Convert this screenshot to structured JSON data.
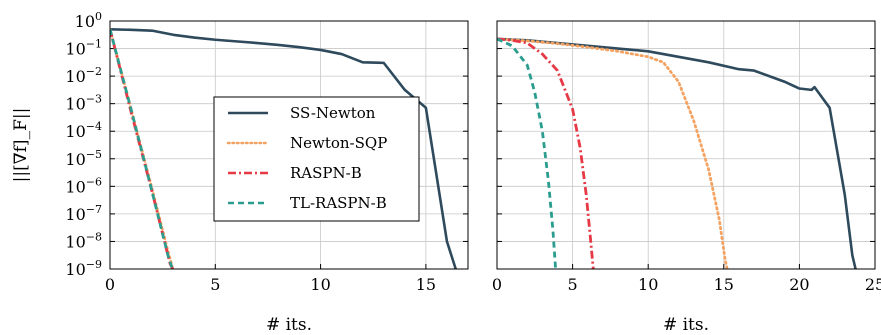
{
  "chart_data": [
    {
      "type": "line",
      "xlabel": "# its.",
      "ylabel": "||[∇f]_F||",
      "xlim": [
        0,
        17
      ],
      "ylim_log10": [
        -9,
        0
      ],
      "yscale": "log",
      "grid": true,
      "x_ticks": [
        "0",
        "5",
        "10",
        "15"
      ],
      "y_ticks": [
        "10^0",
        "10^-1",
        "10^-2",
        "10^-3",
        "10^-4",
        "10^-5",
        "10^-6",
        "10^-7",
        "10^-8",
        "10^-9"
      ],
      "legend": {
        "placement": "center-left",
        "entries": [
          "SS-Newton",
          "Newton-SQP",
          "RASPN-B",
          "TL-RASPN-B"
        ]
      },
      "series": [
        {
          "name": "SS-Newton",
          "color": "#2e4a5c",
          "style": "solid",
          "x": [
            0,
            1,
            2,
            3,
            4,
            5,
            6,
            7,
            8,
            9,
            10,
            11,
            12,
            13,
            14,
            15,
            16,
            16.5
          ],
          "log10_y": [
            -0.3,
            -0.32,
            -0.35,
            -0.5,
            -0.6,
            -0.68,
            -0.74,
            -0.8,
            -0.87,
            -0.95,
            -1.05,
            -1.2,
            -1.5,
            -1.52,
            -2.5,
            -3.15,
            -8.0,
            -9.2
          ]
        },
        {
          "name": "Newton-SQP",
          "color": "#f4a261",
          "style": "dotted",
          "x": [
            0,
            1,
            2,
            2.7,
            3.05
          ],
          "log10_y": [
            -0.3,
            -3.2,
            -6.1,
            -8.2,
            -9.2
          ]
        },
        {
          "name": "RASPN-B",
          "color": "#e63946",
          "style": "dashdot",
          "x": [
            0,
            1,
            2,
            2.85,
            3.1
          ],
          "log10_y": [
            -0.3,
            -3.3,
            -6.2,
            -8.8,
            -9.2
          ]
        },
        {
          "name": "TL-RASPN-B",
          "color": "#2a9d8f",
          "style": "dashed",
          "x": [
            0,
            1,
            2,
            2.75,
            3.05
          ],
          "log10_y": [
            -0.3,
            -3.2,
            -6.2,
            -8.5,
            -9.2
          ]
        }
      ]
    },
    {
      "type": "line",
      "xlabel": "# its.",
      "xlim": [
        0,
        25
      ],
      "ylim_log10": [
        -9,
        0
      ],
      "yscale": "log",
      "grid": true,
      "x_ticks": [
        "0",
        "5",
        "10",
        "15",
        "20",
        "25"
      ],
      "series": [
        {
          "name": "SS-Newton",
          "color": "#2e4a5c",
          "style": "solid",
          "x": [
            0,
            2,
            4,
            6,
            8,
            10,
            12,
            14,
            16,
            17,
            18,
            19,
            20,
            20.8,
            21,
            22,
            23,
            23.5,
            23.8
          ],
          "log10_y": [
            -0.65,
            -0.7,
            -0.8,
            -0.9,
            -1.0,
            -1.1,
            -1.3,
            -1.5,
            -1.75,
            -1.8,
            -2.0,
            -2.2,
            -2.45,
            -2.5,
            -2.4,
            -3.15,
            -6.3,
            -8.5,
            -9.2
          ]
        },
        {
          "name": "Newton-SQP",
          "color": "#f4a261",
          "style": "dotted",
          "x": [
            0,
            2,
            4,
            6,
            8,
            10,
            11,
            12,
            13,
            14,
            14.7,
            15.1,
            15.3
          ],
          "log10_y": [
            -0.65,
            -0.72,
            -0.82,
            -0.95,
            -1.1,
            -1.3,
            -1.5,
            -2.2,
            -3.6,
            -5.4,
            -7.2,
            -8.7,
            -9.2
          ]
        },
        {
          "name": "RASPN-B",
          "color": "#e63946",
          "style": "dashdot",
          "x": [
            0,
            1,
            2,
            3,
            4,
            5,
            5.5,
            5.9,
            6.2,
            6.4
          ],
          "log10_y": [
            -0.65,
            -0.7,
            -0.8,
            -1.2,
            -1.8,
            -3.2,
            -4.6,
            -6.3,
            -8.0,
            -9.2
          ]
        },
        {
          "name": "TL-RASPN-B",
          "color": "#2a9d8f",
          "style": "dashed",
          "x": [
            0,
            1,
            2,
            2.5,
            3,
            3.4,
            3.7,
            3.9
          ],
          "log10_y": [
            -0.65,
            -0.9,
            -1.6,
            -2.6,
            -4.0,
            -5.8,
            -7.6,
            -9.2
          ]
        }
      ]
    }
  ]
}
